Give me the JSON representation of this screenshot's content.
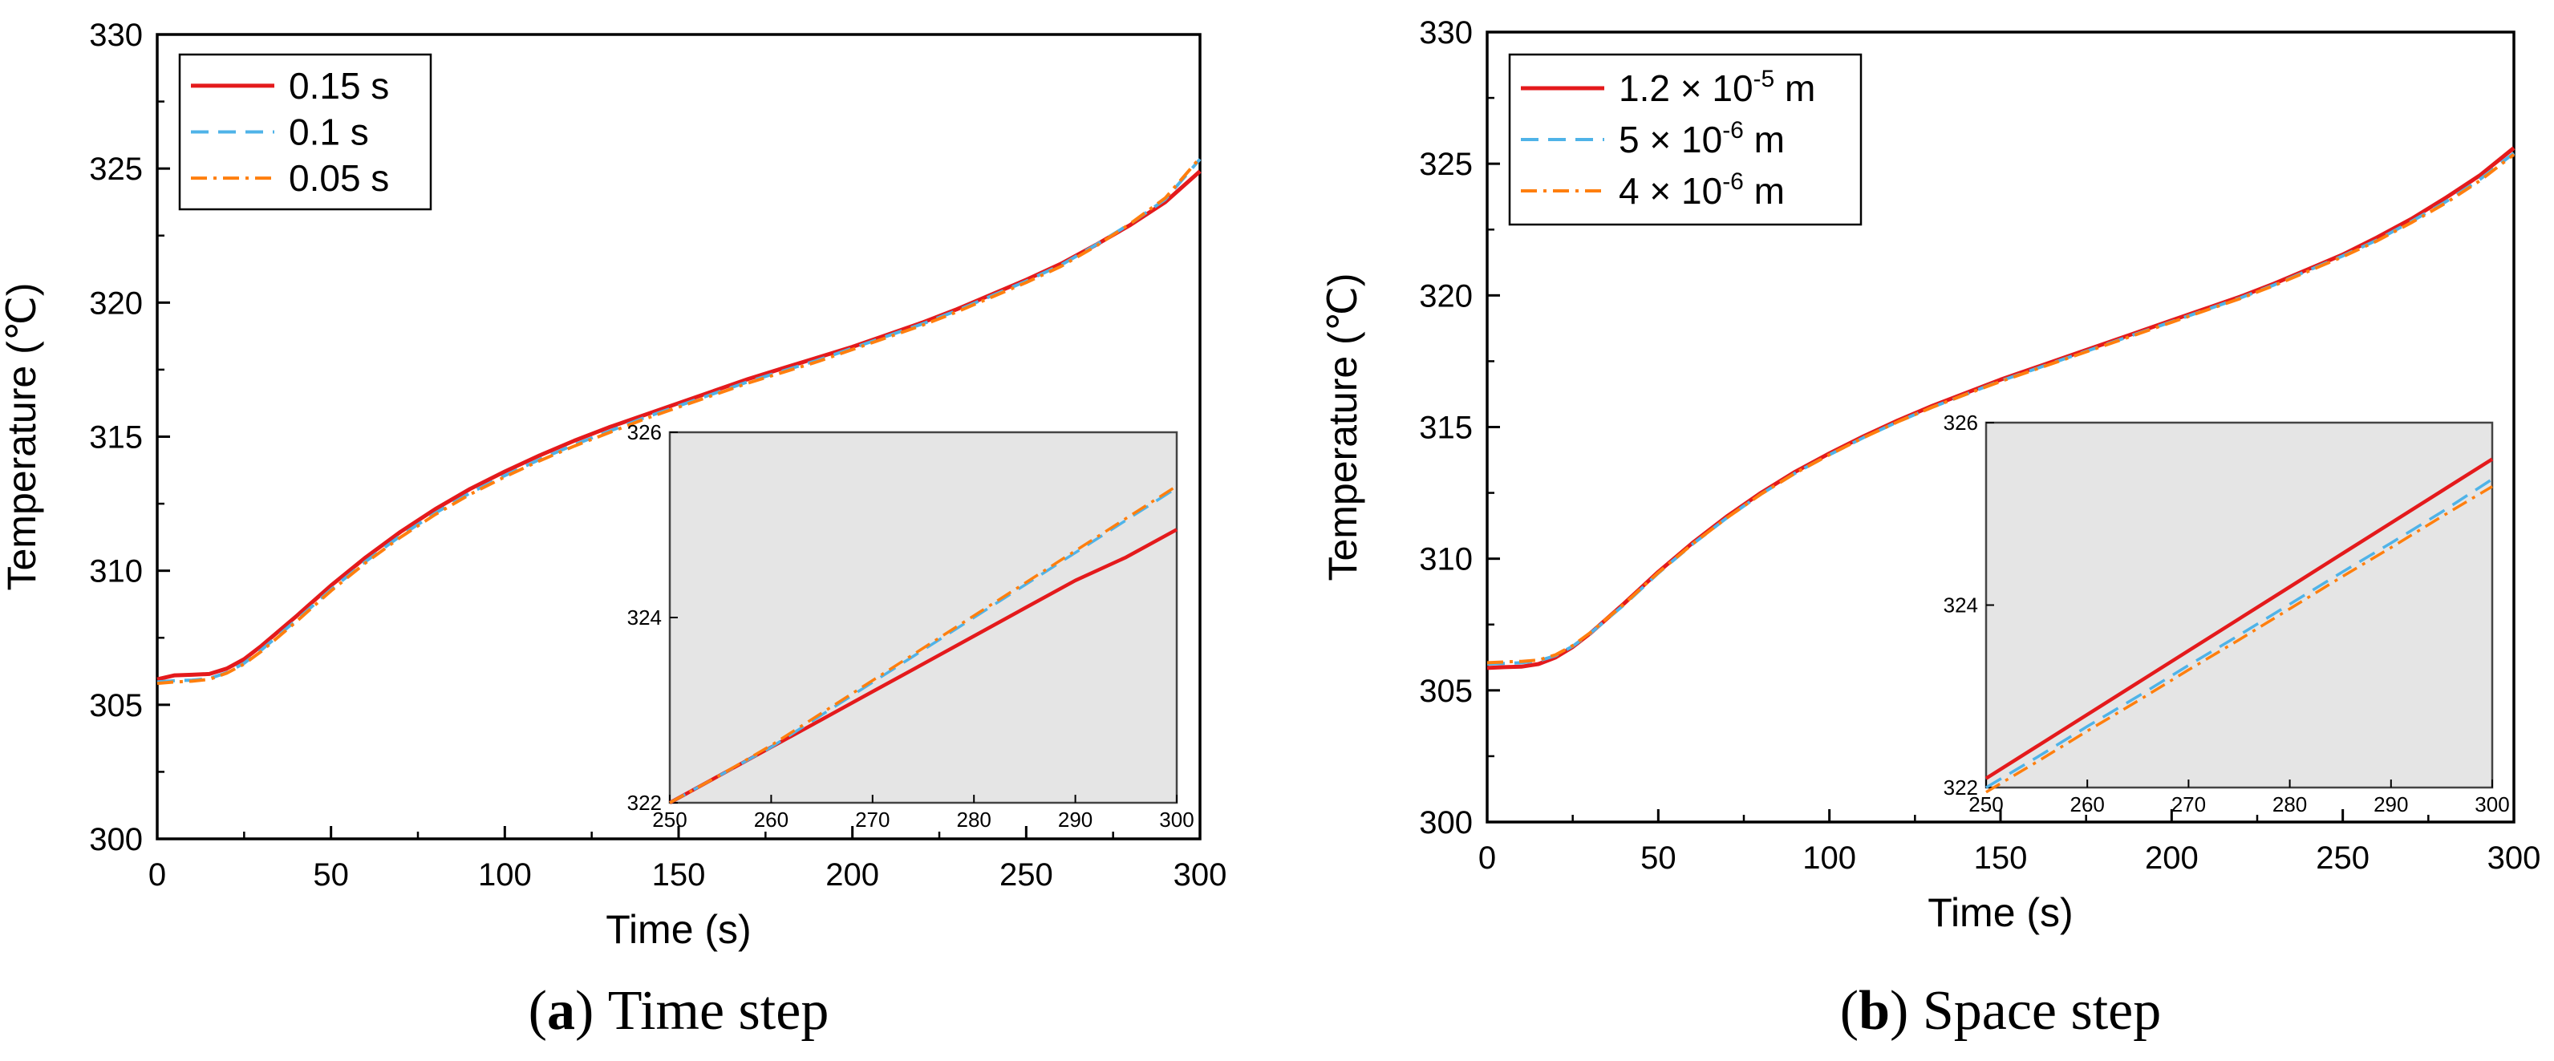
{
  "chart_data": [
    {
      "type": "line",
      "caption_label": "a",
      "caption_text": "Time step",
      "xlabel": "Time (s)",
      "ylabel": "Temperature (℃)",
      "xlim": [
        0,
        300
      ],
      "ylim": [
        300,
        330
      ],
      "xticks": [
        0,
        50,
        100,
        150,
        200,
        250,
        300
      ],
      "yticks": [
        300,
        305,
        310,
        315,
        320,
        325,
        330
      ],
      "legend_position": "top-left",
      "series": [
        {
          "name": "0.15 s",
          "color": "#e41a1c",
          "style": "solid",
          "x": [
            0,
            5,
            10,
            15,
            20,
            25,
            30,
            40,
            50,
            60,
            70,
            80,
            90,
            100,
            110,
            120,
            130,
            140,
            150,
            160,
            170,
            180,
            190,
            200,
            210,
            220,
            230,
            240,
            250,
            260,
            270,
            280,
            290,
            300
          ],
          "y": [
            305.95,
            306.1,
            306.12,
            306.15,
            306.35,
            306.7,
            307.2,
            308.3,
            309.45,
            310.5,
            311.45,
            312.3,
            313.05,
            313.7,
            314.3,
            314.85,
            315.35,
            315.8,
            316.25,
            316.7,
            317.15,
            317.55,
            317.95,
            318.35,
            318.8,
            319.25,
            319.75,
            320.3,
            320.85,
            321.45,
            322.15,
            322.9,
            323.75,
            324.9
          ]
        },
        {
          "name": "0.1 s",
          "color": "#4fb3e8",
          "style": "dashed",
          "x": [
            0,
            5,
            10,
            15,
            20,
            25,
            30,
            40,
            50,
            60,
            70,
            80,
            90,
            100,
            110,
            120,
            130,
            140,
            150,
            160,
            170,
            180,
            190,
            200,
            210,
            220,
            230,
            240,
            250,
            260,
            270,
            280,
            290,
            300
          ],
          "y": [
            305.85,
            305.9,
            305.92,
            305.98,
            306.2,
            306.55,
            307.05,
            308.15,
            309.3,
            310.35,
            311.3,
            312.15,
            312.9,
            313.55,
            314.15,
            314.7,
            315.2,
            315.7,
            316.15,
            316.6,
            317.05,
            317.45,
            317.85,
            318.3,
            318.75,
            319.2,
            319.7,
            320.25,
            320.8,
            321.4,
            322.15,
            322.95,
            323.85,
            325.35
          ]
        },
        {
          "name": "0.05 s",
          "color": "#ff7f0e",
          "style": "dashdot",
          "x": [
            0,
            5,
            10,
            15,
            20,
            25,
            30,
            40,
            50,
            60,
            70,
            80,
            90,
            100,
            110,
            120,
            130,
            140,
            150,
            160,
            170,
            180,
            190,
            200,
            210,
            220,
            230,
            240,
            250,
            260,
            270,
            280,
            290,
            300
          ],
          "y": [
            305.8,
            305.85,
            305.88,
            305.95,
            306.18,
            306.52,
            307.0,
            308.1,
            309.25,
            310.3,
            311.25,
            312.1,
            312.85,
            313.5,
            314.1,
            314.65,
            315.15,
            315.65,
            316.1,
            316.55,
            317.0,
            317.4,
            317.8,
            318.25,
            318.7,
            319.15,
            319.65,
            320.2,
            320.75,
            321.35,
            322.1,
            322.95,
            323.9,
            325.4
          ]
        }
      ],
      "inset": {
        "xlim": [
          250,
          300
        ],
        "ylim": [
          322,
          326
        ],
        "xticks": [
          250,
          260,
          270,
          280,
          290,
          300
        ],
        "yticks": [
          322,
          324,
          326
        ],
        "series": [
          {
            "name": "0.15 s",
            "color": "#e41a1c",
            "style": "solid",
            "x": [
              250,
              255,
              260,
              265,
              270,
              275,
              280,
              285,
              290,
              295,
              300
            ],
            "y": [
              322.0,
              322.3,
              322.6,
              322.9,
              323.2,
              323.5,
              323.8,
              324.1,
              324.4,
              324.65,
              324.95
            ]
          },
          {
            "name": "0.1 s",
            "color": "#4fb3e8",
            "style": "dashed",
            "x": [
              250,
              255,
              260,
              265,
              270,
              275,
              280,
              285,
              290,
              295,
              300
            ],
            "y": [
              322.0,
              322.3,
              322.6,
              322.95,
              323.3,
              323.65,
              324.0,
              324.35,
              324.7,
              325.05,
              325.4
            ]
          },
          {
            "name": "0.05 s",
            "color": "#ff7f0e",
            "style": "dashdot",
            "x": [
              250,
              255,
              260,
              265,
              270,
              275,
              280,
              285,
              290,
              295,
              300
            ],
            "y": [
              322.0,
              322.3,
              322.62,
              322.97,
              323.32,
              323.67,
              324.02,
              324.37,
              324.72,
              325.07,
              325.42
            ]
          }
        ]
      }
    },
    {
      "type": "line",
      "caption_label": "b",
      "caption_text": "Space step",
      "xlabel": "Time (s)",
      "ylabel": "Temperature (℃)",
      "xlim": [
        0,
        300
      ],
      "ylim": [
        300,
        330
      ],
      "xticks": [
        0,
        50,
        100,
        150,
        200,
        250,
        300
      ],
      "yticks": [
        300,
        305,
        310,
        315,
        320,
        325,
        330
      ],
      "legend_position": "top-left",
      "series": [
        {
          "name": "1.2 × 10-5 m",
          "label_base": "1.2 × 10",
          "label_exp": "-5",
          "label_unit": " m",
          "color": "#e41a1c",
          "style": "solid",
          "x": [
            0,
            5,
            10,
            15,
            20,
            25,
            30,
            40,
            50,
            60,
            70,
            80,
            90,
            100,
            110,
            120,
            130,
            140,
            150,
            160,
            170,
            180,
            190,
            200,
            210,
            220,
            230,
            240,
            250,
            260,
            270,
            280,
            290,
            300
          ],
          "y": [
            305.85,
            305.88,
            305.9,
            306.0,
            306.25,
            306.65,
            307.15,
            308.3,
            309.5,
            310.6,
            311.6,
            312.5,
            313.3,
            314.0,
            314.65,
            315.25,
            315.8,
            316.3,
            316.8,
            317.25,
            317.7,
            318.15,
            318.6,
            319.05,
            319.5,
            319.95,
            320.45,
            321.0,
            321.55,
            322.2,
            322.9,
            323.7,
            324.55,
            325.6
          ]
        },
        {
          "name": "5 × 10-6 m",
          "label_base": "5 × 10",
          "label_exp": "-6",
          "label_unit": " m",
          "color": "#4fb3e8",
          "style": "dashed",
          "x": [
            0,
            5,
            10,
            15,
            20,
            25,
            30,
            40,
            50,
            60,
            70,
            80,
            90,
            100,
            110,
            120,
            130,
            140,
            150,
            160,
            170,
            180,
            190,
            200,
            210,
            220,
            230,
            240,
            250,
            260,
            270,
            280,
            290,
            300
          ],
          "y": [
            306.0,
            306.02,
            306.05,
            306.12,
            306.32,
            306.68,
            307.15,
            308.25,
            309.45,
            310.55,
            311.55,
            312.45,
            313.25,
            313.95,
            314.6,
            315.2,
            315.75,
            316.25,
            316.75,
            317.2,
            317.65,
            318.1,
            318.55,
            319.0,
            319.45,
            319.9,
            320.4,
            320.95,
            321.5,
            322.1,
            322.8,
            323.55,
            324.4,
            325.4
          ]
        },
        {
          "name": "4 × 10-6 m",
          "label_base": "4 × 10",
          "label_exp": "-6",
          "label_unit": " m",
          "color": "#ff7f0e",
          "style": "dashdot",
          "x": [
            0,
            5,
            10,
            15,
            20,
            25,
            30,
            40,
            50,
            60,
            70,
            80,
            90,
            100,
            110,
            120,
            130,
            140,
            150,
            160,
            170,
            180,
            190,
            200,
            210,
            220,
            230,
            240,
            250,
            260,
            270,
            280,
            290,
            300
          ],
          "y": [
            306.05,
            306.08,
            306.1,
            306.15,
            306.35,
            306.7,
            307.18,
            308.28,
            309.47,
            310.56,
            311.55,
            312.45,
            313.25,
            313.95,
            314.6,
            315.2,
            315.75,
            316.25,
            316.73,
            317.18,
            317.63,
            318.08,
            318.53,
            318.98,
            319.43,
            319.88,
            320.38,
            320.92,
            321.47,
            322.07,
            322.76,
            323.5,
            324.35,
            325.35
          ]
        }
      ],
      "inset": {
        "xlim": [
          250,
          300
        ],
        "ylim": [
          322,
          326
        ],
        "xticks": [
          250,
          260,
          270,
          280,
          290,
          300
        ],
        "yticks": [
          322,
          324,
          326
        ],
        "series": [
          {
            "name": "1.2 × 10-5 m",
            "color": "#e41a1c",
            "style": "solid",
            "x": [
              250,
              255,
              260,
              265,
              270,
              275,
              280,
              285,
              290,
              295,
              300
            ],
            "y": [
              322.1,
              322.45,
              322.8,
              323.15,
              323.5,
              323.85,
              324.2,
              324.55,
              324.9,
              325.25,
              325.6
            ]
          },
          {
            "name": "5 × 10-6 m",
            "color": "#4fb3e8",
            "style": "dashed",
            "x": [
              250,
              255,
              260,
              265,
              270,
              275,
              280,
              285,
              290,
              295,
              300
            ],
            "y": [
              322.0,
              322.33,
              322.67,
              323.0,
              323.34,
              323.67,
              324.01,
              324.35,
              324.68,
              325.02,
              325.38
            ]
          },
          {
            "name": "4 × 10-6 m",
            "color": "#ff7f0e",
            "style": "dashdot",
            "x": [
              250,
              255,
              260,
              265,
              270,
              275,
              280,
              285,
              290,
              295,
              300
            ],
            "y": [
              321.95,
              322.28,
              322.62,
              322.95,
              323.29,
              323.62,
              323.96,
              324.3,
              324.63,
              324.97,
              325.3
            ]
          }
        ]
      }
    }
  ]
}
